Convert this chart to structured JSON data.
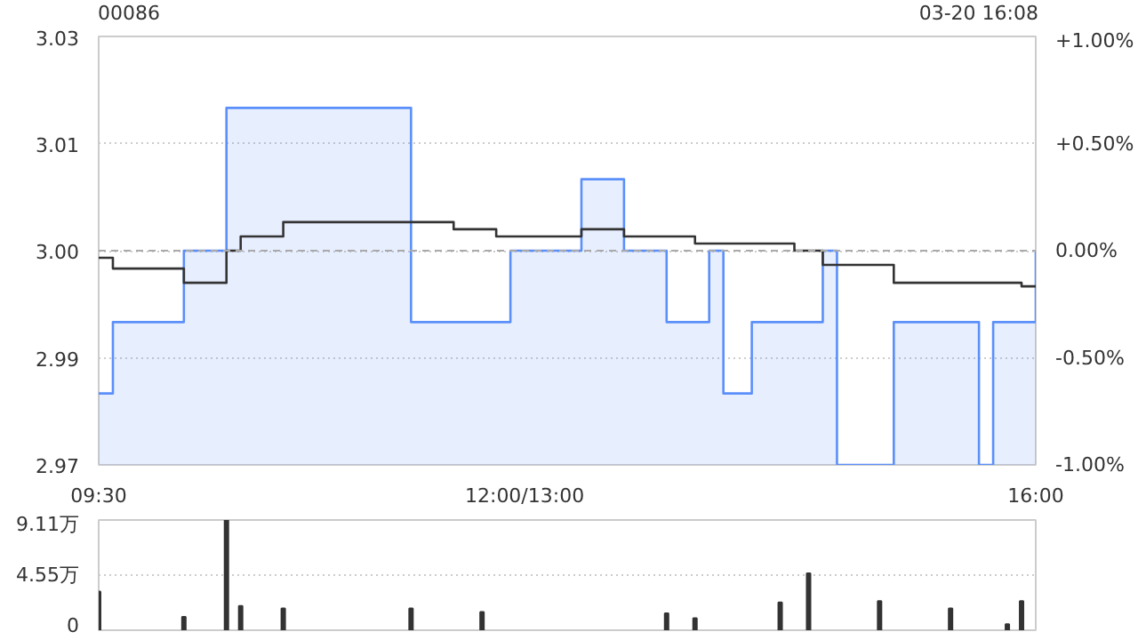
{
  "chart_data": [
    {
      "type": "step",
      "title": "00086",
      "annotations": [
        "03-20 16:08"
      ],
      "categories": [
        "09:30",
        null,
        null,
        null,
        null,
        null,
        null,
        null,
        null,
        null,
        null,
        null,
        null,
        null,
        null,
        null,
        null,
        null,
        null,
        null,
        null,
        null,
        null,
        null,
        null,
        null,
        null,
        null,
        null,
        null,
        "12:00/13:00",
        null,
        null,
        null,
        null,
        null,
        null,
        null,
        null,
        null,
        null,
        null,
        null,
        null,
        null,
        null,
        null,
        null,
        null,
        null,
        null,
        null,
        null,
        null,
        null,
        null,
        null,
        null,
        null,
        null,
        null,
        null,
        null,
        null,
        null,
        null,
        "16:00"
      ],
      "ylim": [
        2.97,
        3.03
      ],
      "yticks": [
        {
          "value": 2.97,
          "label": "2.97"
        },
        {
          "value": 2.985,
          "label": "2.99"
        },
        {
          "value": 3.0,
          "label": "3.00"
        },
        {
          "value": 3.015,
          "label": "3.01"
        },
        {
          "value": 3.03,
          "label": "3.03"
        }
      ],
      "y2lim": [
        -1,
        1
      ],
      "y2ticks": [
        {
          "value": -1,
          "label": "-1.00%"
        },
        {
          "value": -0.5,
          "label": "-0.50%"
        },
        {
          "value": 0,
          "label": "0.00%"
        },
        {
          "value": 0.5,
          "label": "+0.50%"
        },
        {
          "value": 1,
          "label": "+1.00%"
        }
      ],
      "grid": "y",
      "ref_lines": [
        {
          "axis": "y",
          "value": 3.0,
          "label": null,
          "color": "#aaaaaa",
          "line_style": "dashed"
        }
      ],
      "series": [
        {
          "type": "area",
          "color": "#5b8ff9",
          "values": [
            2.98,
            2.99,
            2.99,
            2.99,
            2.99,
            2.99,
            3.0,
            3.0,
            3.0,
            3.02,
            3.02,
            3.02,
            3.02,
            3.02,
            3.02,
            3.02,
            3.02,
            3.02,
            3.02,
            3.02,
            3.02,
            3.02,
            2.99,
            2.99,
            2.99,
            2.99,
            2.99,
            2.99,
            2.99,
            3.0,
            3.0,
            3.0,
            3.0,
            3.0,
            3.01,
            3.01,
            3.01,
            3.0,
            3.0,
            3.0,
            2.99,
            2.99,
            2.99,
            3.0,
            2.98,
            2.98,
            2.99,
            2.99,
            2.99,
            2.99,
            2.99,
            3.0,
            2.97,
            2.97,
            2.97,
            2.97,
            2.99,
            2.99,
            2.99,
            2.99,
            2.99,
            2.99,
            2.97,
            2.99,
            2.99,
            2.99,
            3.0
          ]
        },
        {
          "color": "#333333",
          "values": [
            2.999,
            2.9975,
            2.9975,
            2.9975,
            2.9975,
            2.9975,
            2.9955,
            2.9955,
            2.9955,
            3.0,
            3.002,
            3.002,
            3.002,
            3.004,
            3.004,
            3.004,
            3.004,
            3.004,
            3.004,
            3.004,
            3.004,
            3.004,
            3.004,
            3.004,
            3.004,
            3.003,
            3.003,
            3.003,
            3.002,
            3.002,
            3.002,
            3.002,
            3.002,
            3.002,
            3.003,
            3.003,
            3.003,
            3.002,
            3.002,
            3.002,
            3.002,
            3.002,
            3.001,
            3.001,
            3.001,
            3.001,
            3.001,
            3.001,
            3.001,
            3.0,
            3.0,
            2.998,
            2.998,
            2.998,
            2.998,
            2.998,
            2.9955,
            2.9955,
            2.9955,
            2.9955,
            2.9955,
            2.9955,
            2.9955,
            2.9955,
            2.9955,
            2.995,
            2.995
          ]
        }
      ]
    },
    {
      "type": "bar",
      "tick_labels": "y",
      "categories": [
        null,
        null,
        null,
        null,
        null,
        null,
        null,
        null,
        null,
        null,
        null,
        null,
        null,
        null,
        null,
        null,
        null,
        null,
        null,
        null,
        null,
        null,
        null,
        null,
        null,
        null,
        null,
        null,
        null,
        null,
        null,
        null,
        null,
        null,
        null,
        null,
        null,
        null,
        null,
        null,
        null,
        null,
        null,
        null,
        null,
        null,
        null,
        null,
        null,
        null,
        null,
        null,
        null,
        null,
        null,
        null,
        null,
        null,
        null,
        null,
        null,
        null,
        null,
        null,
        null,
        null,
        null
      ],
      "ylim": [
        0,
        9.11
      ],
      "yticks": [
        {
          "value": 0,
          "label": "0"
        },
        {
          "value": 4.55,
          "label": "4.55万"
        },
        {
          "value": 9.11,
          "label": "9.11万"
        }
      ],
      "grid": "y",
      "series": [
        {
          "color": "#333333",
          "values": [
            3.2,
            null,
            null,
            null,
            null,
            null,
            1.1,
            null,
            null,
            9.1,
            2.0,
            null,
            null,
            1.8,
            null,
            null,
            null,
            null,
            null,
            null,
            null,
            null,
            1.8,
            null,
            null,
            null,
            null,
            1.5,
            null,
            null,
            null,
            null,
            null,
            null,
            null,
            null,
            null,
            null,
            null,
            null,
            1.4,
            null,
            1.0,
            null,
            null,
            null,
            null,
            null,
            2.3,
            null,
            4.7,
            null,
            null,
            null,
            null,
            2.4,
            null,
            null,
            null,
            null,
            1.8,
            null,
            null,
            null,
            0.5,
            2.4,
            null
          ]
        }
      ]
    }
  ]
}
